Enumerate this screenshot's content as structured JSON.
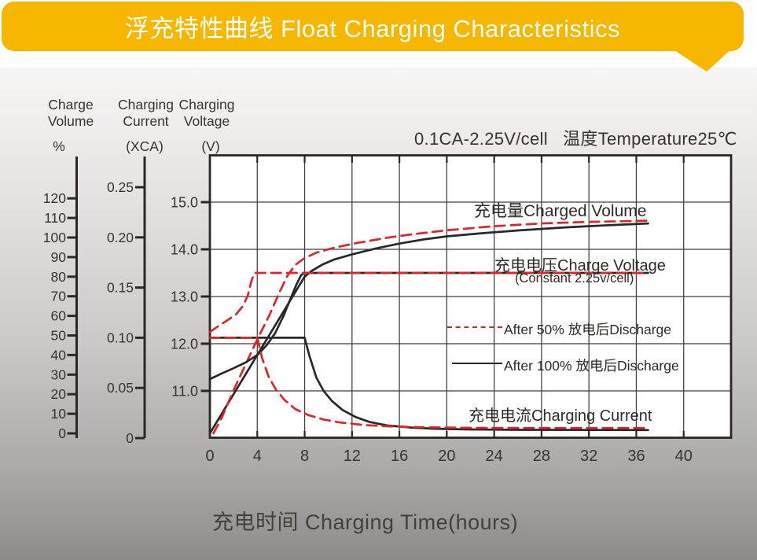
{
  "banner": {
    "title": "浮充特性曲线 Float Charging Characteristics",
    "bg_color": "#f7b600",
    "text_color": "#ffffff"
  },
  "chart_data": {
    "type": "line",
    "condition_label": "0.1CA-2.25V/cell   温度Temperature25℃",
    "x_axis": {
      "title": "充电时间 Charging Time(hours)",
      "tick_labels": [
        "0",
        "4",
        "8",
        "12",
        "16",
        "20",
        "24",
        "28",
        "32",
        "36",
        "40"
      ],
      "range": [
        0,
        44
      ],
      "unit": "hours"
    },
    "y_axes": [
      {
        "id": "volume",
        "name_lines": [
          "Charge",
          "Volume"
        ],
        "unit": "%",
        "tick_labels": [
          "0",
          "10",
          "20",
          "30",
          "40",
          "50",
          "60",
          "70",
          "80",
          "90",
          "100",
          "110",
          "120"
        ],
        "range": [
          0,
          128
        ]
      },
      {
        "id": "current",
        "name_lines": [
          "Charging",
          "Current"
        ],
        "unit": "(XCA)",
        "tick_labels": [
          "0",
          "0.05",
          "0.10",
          "0.15",
          "0.20",
          "0.25"
        ],
        "range": [
          0,
          0.25
        ]
      },
      {
        "id": "voltage",
        "name_lines": [
          "Charging",
          "Voltage"
        ],
        "unit": "(V)",
        "tick_labels": [
          "11.0",
          "12.0",
          "13.0",
          "14.0",
          "15.0"
        ],
        "range": [
          10,
          16
        ]
      }
    ],
    "grid": true,
    "plot_bg": "#ffffff",
    "annotations": {
      "charged_volume": "充电量Charged Volume",
      "charge_voltage": "充电电压Charge Voltage",
      "charge_voltage_sub": "(Constant 2.25v/cell)",
      "charging_current": "充电电流Charging Current"
    },
    "legend": [
      {
        "label": "After 50% 放电后Discharge",
        "line_style": "dashed",
        "color": "#e0242a"
      },
      {
        "label": "After 100% 放电后Discharge",
        "line_style": "solid",
        "color": "#282828"
      }
    ],
    "series": [
      {
        "name": "charged-volume-after-100pct-discharge",
        "axis": "volume",
        "style": "solid",
        "color": "#282828",
        "points": [
          [
            0,
            0
          ],
          [
            8,
            80
          ],
          [
            8.6,
            83
          ],
          [
            9.5,
            86.2
          ],
          [
            10.5,
            88.8
          ],
          [
            12,
            91.4
          ],
          [
            14,
            94.4
          ],
          [
            16,
            96.9
          ],
          [
            18,
            99
          ],
          [
            20,
            100.6
          ],
          [
            23,
            102.2
          ],
          [
            26,
            103.6
          ],
          [
            30,
            105.2
          ],
          [
            34,
            106.4
          ],
          [
            37,
            107.2
          ]
        ]
      },
      {
        "name": "charged-volume-after-50pct-discharge",
        "axis": "volume",
        "style": "dashed",
        "color": "#e0242a",
        "points": [
          [
            0.3,
            0
          ],
          [
            1,
            8
          ],
          [
            2,
            22
          ],
          [
            3,
            35
          ],
          [
            4,
            48
          ],
          [
            5,
            60
          ],
          [
            5.8,
            71
          ],
          [
            6.5,
            80
          ],
          [
            7.2,
            86
          ],
          [
            8,
            89.5
          ],
          [
            9,
            92.3
          ],
          [
            10.5,
            94.8
          ],
          [
            12.5,
            97.3
          ],
          [
            15,
            99.9
          ],
          [
            17,
            101.6
          ],
          [
            20,
            103.7
          ],
          [
            24,
            105.8
          ],
          [
            28,
            107.2
          ],
          [
            32,
            108
          ],
          [
            37,
            108.6
          ]
        ]
      },
      {
        "name": "charge-voltage-after-100pct-discharge",
        "axis": "voltage",
        "style": "solid",
        "color": "#282828",
        "points": [
          [
            0,
            11.25
          ],
          [
            1,
            11.37
          ],
          [
            2,
            11.48
          ],
          [
            3,
            11.6
          ],
          [
            4,
            11.76
          ],
          [
            4.8,
            11.97
          ],
          [
            5.5,
            12.22
          ],
          [
            6.2,
            12.58
          ],
          [
            6.8,
            12.95
          ],
          [
            7.3,
            13.25
          ],
          [
            7.7,
            13.45
          ],
          [
            8,
            13.5
          ],
          [
            37,
            13.5
          ]
        ]
      },
      {
        "name": "charge-voltage-after-50pct-discharge",
        "axis": "voltage",
        "style": "dashed",
        "color": "#e0242a",
        "points": [
          [
            0,
            12.25
          ],
          [
            0.7,
            12.37
          ],
          [
            1.5,
            12.5
          ],
          [
            2.2,
            12.62
          ],
          [
            2.8,
            12.8
          ],
          [
            3.2,
            13.02
          ],
          [
            3.5,
            13.32
          ],
          [
            3.75,
            13.5
          ],
          [
            37,
            13.5
          ]
        ]
      },
      {
        "name": "charging-current-after-100pct-discharge",
        "axis": "current",
        "style": "solid",
        "color": "#282828",
        "points": [
          [
            0,
            0.1
          ],
          [
            8,
            0.1
          ],
          [
            8.4,
            0.082
          ],
          [
            9,
            0.06
          ],
          [
            9.6,
            0.047
          ],
          [
            10.3,
            0.037
          ],
          [
            11.2,
            0.028
          ],
          [
            12.3,
            0.021
          ],
          [
            13.5,
            0.016
          ],
          [
            15,
            0.0125
          ],
          [
            17,
            0.0105
          ],
          [
            19,
            0.0093
          ],
          [
            22,
            0.0086
          ],
          [
            26,
            0.0082
          ],
          [
            37,
            0.008
          ]
        ]
      },
      {
        "name": "charging-current-after-50pct-discharge",
        "axis": "current",
        "style": "dashed",
        "color": "#e0242a",
        "points": [
          [
            0,
            0.1
          ],
          [
            4,
            0.1
          ],
          [
            4.4,
            0.08
          ],
          [
            5,
            0.06
          ],
          [
            5.6,
            0.048
          ],
          [
            6.3,
            0.038
          ],
          [
            7.2,
            0.029
          ],
          [
            8.3,
            0.023
          ],
          [
            9.6,
            0.0185
          ],
          [
            11,
            0.0155
          ],
          [
            13,
            0.013
          ],
          [
            15.5,
            0.0115
          ],
          [
            18,
            0.0108
          ],
          [
            22,
            0.0102
          ],
          [
            26,
            0.01
          ],
          [
            37,
            0.01
          ]
        ]
      }
    ],
    "colors": {
      "grid": "#3e3e3e",
      "axis": "#2c2723",
      "tick_text": "#39332d"
    }
  }
}
